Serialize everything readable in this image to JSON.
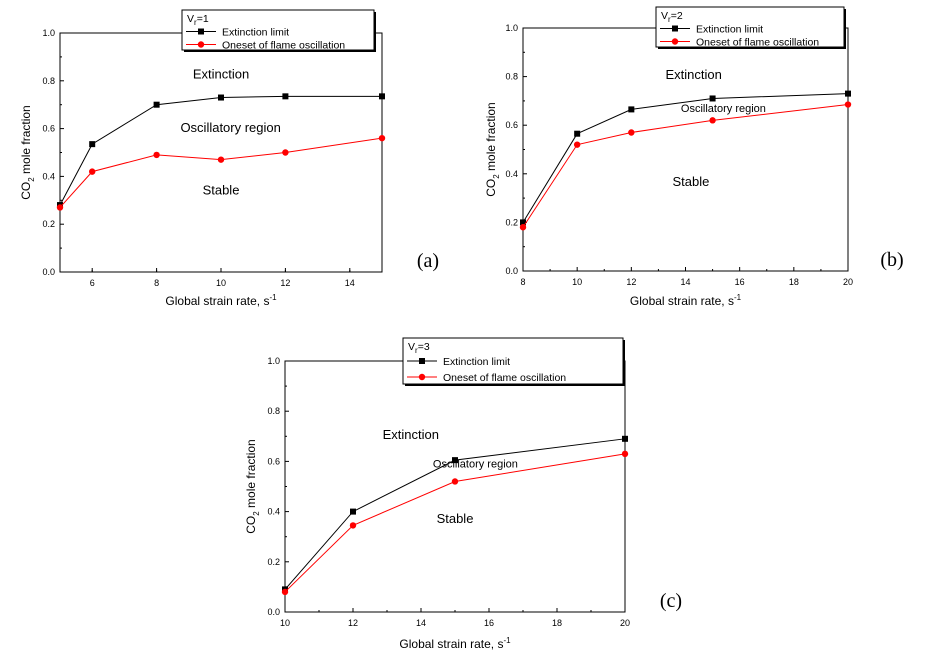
{
  "chart_data": [
    {
      "type": "line",
      "panel_label": "(a)",
      "xlabel": "Global strain rate, s",
      "xlabel_sup": "-1",
      "ylabel": "CO",
      "ylabel_sub": "2",
      "ylabel_rest": " mole fraction",
      "xlim": [
        5,
        15
      ],
      "ylim": [
        0,
        1
      ],
      "xticks": [
        6,
        8,
        10,
        12,
        14
      ],
      "yticks": [
        0.0,
        0.2,
        0.4,
        0.6,
        0.8,
        1.0
      ],
      "legend_title": "V",
      "legend_title_sub": "r",
      "legend_title_rest": "=1",
      "series": [
        {
          "name": "Extinction limit",
          "color": "#000000",
          "marker": "square",
          "x": [
            5,
            6,
            8,
            10,
            12,
            15
          ],
          "y": [
            0.28,
            0.535,
            0.7,
            0.73,
            0.735,
            0.735
          ]
        },
        {
          "name": "Oneset of flame oscillation",
          "color": "#ff0000",
          "marker": "circle",
          "x": [
            5,
            6,
            8,
            10,
            12,
            15
          ],
          "y": [
            0.27,
            0.42,
            0.49,
            0.47,
            0.5,
            0.56
          ]
        }
      ],
      "annotations": [
        {
          "text": "Extinction",
          "x": 10,
          "y": 0.81,
          "size": "lg"
        },
        {
          "text": "Oscillatory region",
          "x": 10.3,
          "y": 0.585,
          "size": "lg"
        },
        {
          "text": "Stable",
          "x": 10,
          "y": 0.325,
          "size": "lg"
        }
      ]
    },
    {
      "type": "line",
      "panel_label": "(b)",
      "xlabel": "Global strain rate, s",
      "xlabel_sup": "-1",
      "ylabel": "CO",
      "ylabel_sub": "2",
      "ylabel_rest": " mole fraction",
      "xlim": [
        8,
        20
      ],
      "ylim": [
        0,
        1
      ],
      "xticks": [
        8,
        10,
        12,
        14,
        16,
        18,
        20
      ],
      "yticks": [
        0.0,
        0.2,
        0.4,
        0.6,
        0.8,
        1.0
      ],
      "legend_title": "V",
      "legend_title_sub": "r",
      "legend_title_rest": "=2",
      "series": [
        {
          "name": "Extinction limit",
          "color": "#000000",
          "marker": "square",
          "x": [
            8,
            10,
            12,
            15,
            20
          ],
          "y": [
            0.2,
            0.565,
            0.665,
            0.71,
            0.73
          ]
        },
        {
          "name": "Oneset of flame oscillation",
          "color": "#ff0000",
          "marker": "circle",
          "x": [
            8,
            10,
            12,
            15,
            20
          ],
          "y": [
            0.18,
            0.52,
            0.57,
            0.62,
            0.685
          ]
        }
      ],
      "annotations": [
        {
          "text": "Extinction",
          "x": 14.3,
          "y": 0.79,
          "size": "lg"
        },
        {
          "text": "Oscillatory region",
          "x": 15.4,
          "y": 0.655,
          "size": "sm"
        },
        {
          "text": "Stable",
          "x": 14.2,
          "y": 0.35,
          "size": "lg"
        }
      ]
    },
    {
      "type": "line",
      "panel_label": "(c)",
      "xlabel": "Global strain rate, s",
      "xlabel_sup": "-1",
      "ylabel": "CO",
      "ylabel_sub": "2",
      "ylabel_rest": " mole fraction",
      "xlim": [
        10,
        20
      ],
      "ylim": [
        0,
        1
      ],
      "xticks": [
        10,
        12,
        14,
        16,
        18,
        20
      ],
      "yticks": [
        0.0,
        0.2,
        0.4,
        0.6,
        0.8,
        1.0
      ],
      "legend_title": "V",
      "legend_title_sub": "r",
      "legend_title_rest": "=3",
      "series": [
        {
          "name": "Extinction limit",
          "color": "#000000",
          "marker": "square",
          "x": [
            10,
            12,
            15,
            20
          ],
          "y": [
            0.09,
            0.4,
            0.605,
            0.69
          ]
        },
        {
          "name": "Oneset of flame oscillation",
          "color": "#ff0000",
          "marker": "circle",
          "x": [
            10,
            12,
            15,
            20
          ],
          "y": [
            0.08,
            0.345,
            0.52,
            0.63
          ]
        }
      ],
      "annotations": [
        {
          "text": "Extinction",
          "x": 13.7,
          "y": 0.69,
          "size": "lg"
        },
        {
          "text": "Oscillatory region",
          "x": 15.6,
          "y": 0.575,
          "size": "sm"
        },
        {
          "text": "Stable",
          "x": 15.0,
          "y": 0.355,
          "size": "lg"
        }
      ]
    }
  ]
}
